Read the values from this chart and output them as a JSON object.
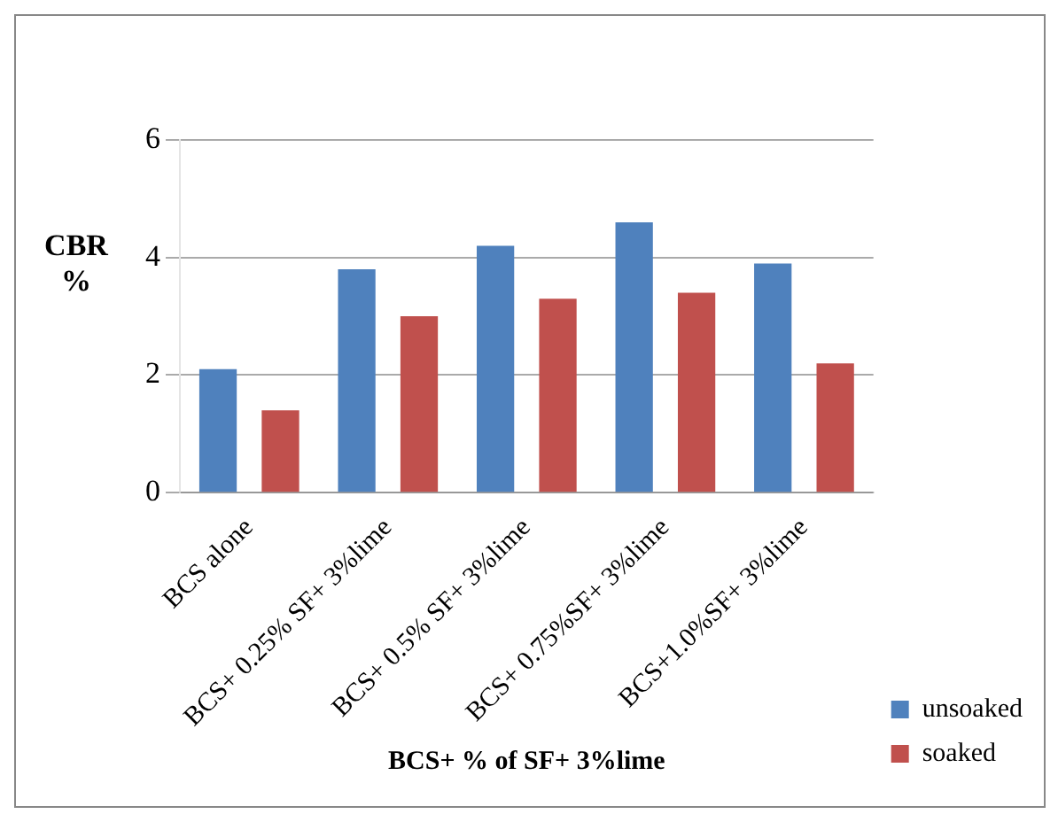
{
  "chart_data": {
    "type": "bar",
    "xlabel": "BCS+ % of SF+ 3%lime",
    "ylabel": "CBR %",
    "categories": [
      "BCS alone",
      "BCS+ 0.25% SF+ 3%lime",
      "BCS+ 0.5% SF+ 3%lime",
      "BCS+ 0.75%SF+ 3%lime",
      "BCS+1.0%SF+ 3%lime"
    ],
    "series": [
      {
        "name": "unsoaked",
        "color": "#4f81bd",
        "values": [
          2.1,
          3.8,
          4.2,
          4.6,
          3.9
        ]
      },
      {
        "name": "soaked",
        "color": "#c0504d",
        "values": [
          1.4,
          3.0,
          3.3,
          3.4,
          2.2
        ]
      }
    ],
    "ylim": [
      0,
      6
    ],
    "yticks": [
      0,
      2,
      4,
      6
    ],
    "grid": "y",
    "legend": "right"
  }
}
